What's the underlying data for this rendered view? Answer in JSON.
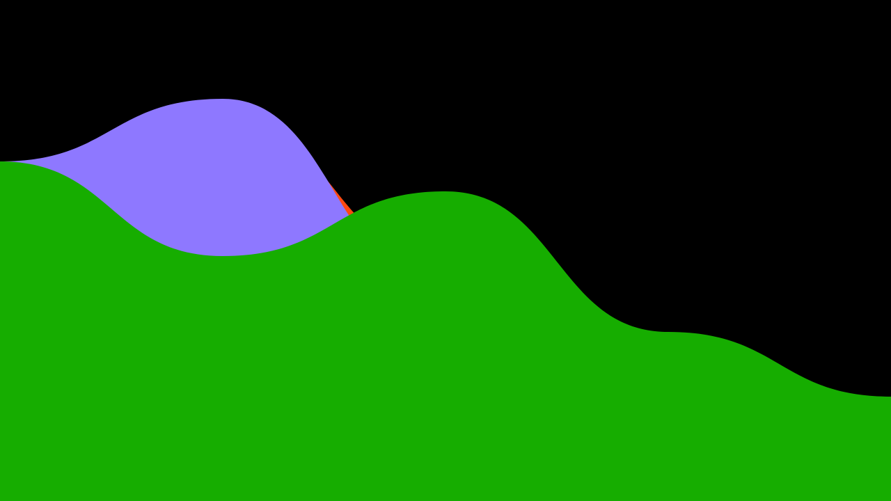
{
  "chart_data": {
    "type": "area",
    "title": "",
    "xlabel": "",
    "ylabel": "",
    "x": [
      0,
      1,
      2,
      3,
      4
    ],
    "ylim": [
      0,
      720
    ],
    "grid": false,
    "legend": "none",
    "background": "#000000",
    "series": [
      {
        "color": "#FF4912",
        "values": [
          488,
          549,
          348,
          75,
          0
        ]
      },
      {
        "color": "#8E78FF",
        "values": [
          488,
          578,
          312,
          150,
          75
        ]
      },
      {
        "color": "#16AD00",
        "values": [
          488,
          352,
          445,
          243,
          150
        ]
      }
    ]
  }
}
